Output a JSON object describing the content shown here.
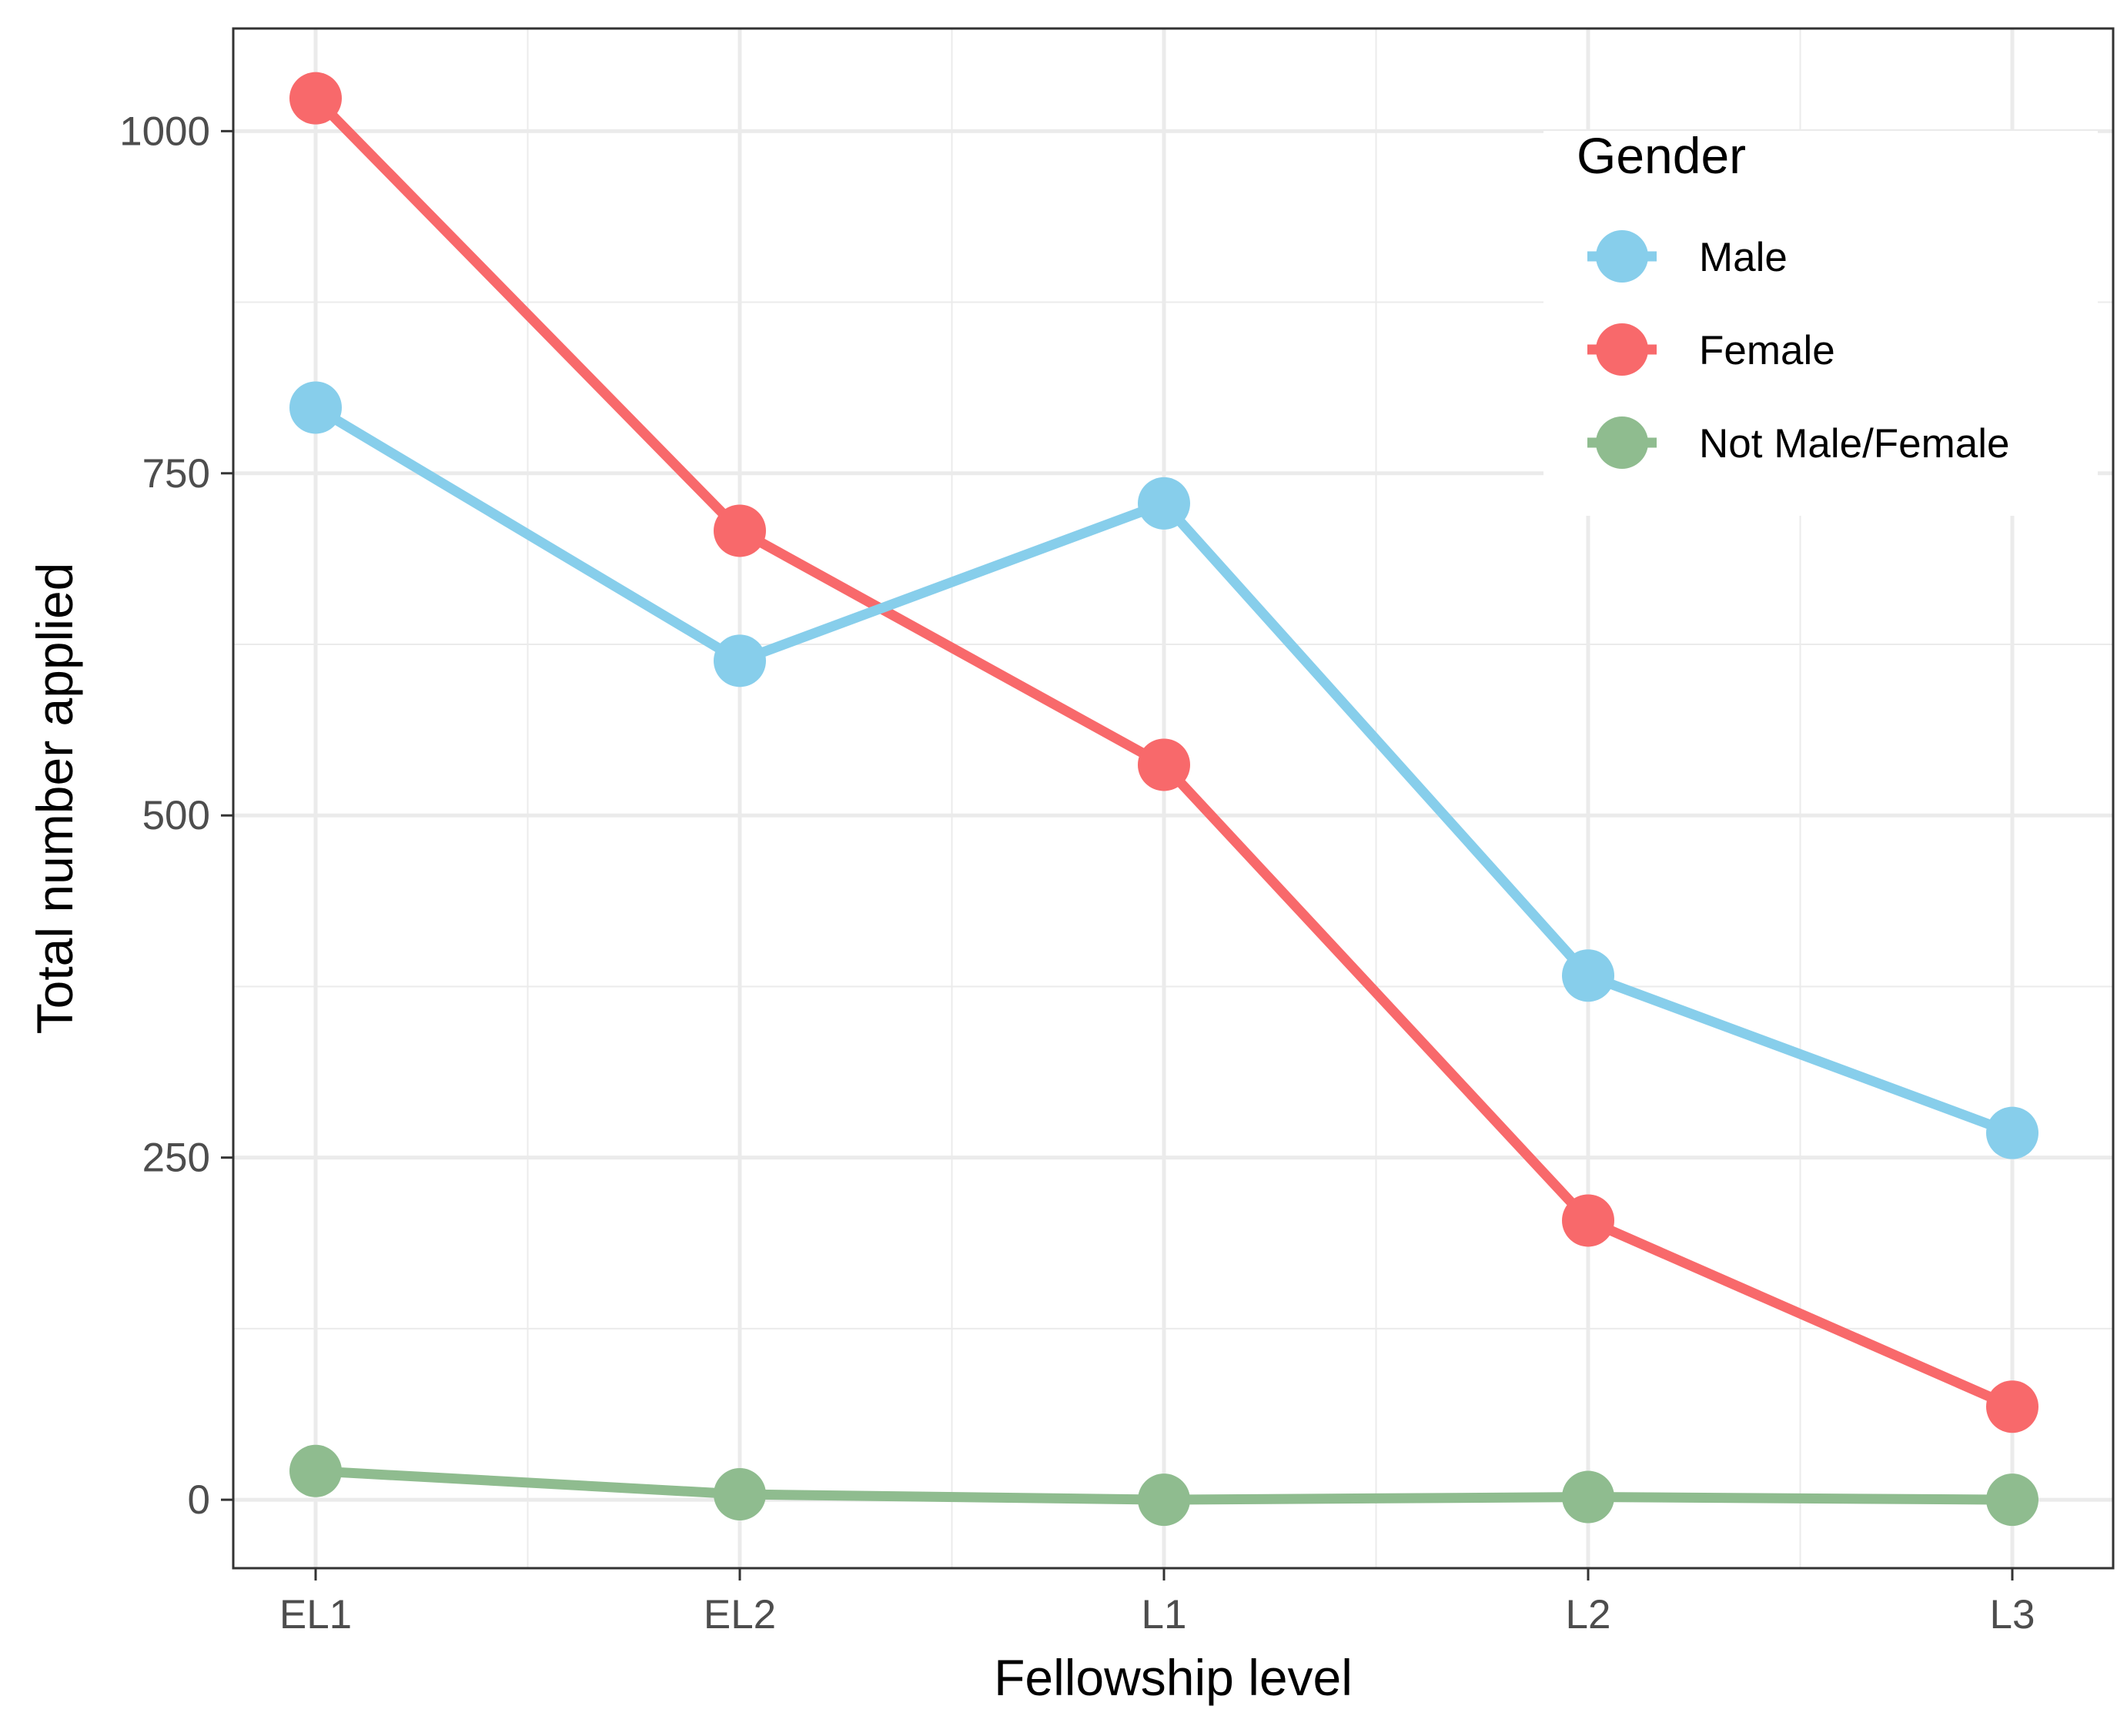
{
  "chart_data": {
    "type": "line",
    "title": "",
    "xlabel": "Fellowship level",
    "ylabel": "Total number applied",
    "categories": [
      "EL1",
      "EL2",
      "L1",
      "L2",
      "L3"
    ],
    "ylim": [
      -50,
      1075
    ],
    "yticks": [
      0,
      250,
      500,
      750,
      1000
    ],
    "yticks_minor": [
      125,
      375,
      625,
      875
    ],
    "grid": true,
    "legend": {
      "title": "Gender",
      "placement": "top-right"
    },
    "series": [
      {
        "name": "Male",
        "color": "#87CEEB",
        "values": [
          798,
          613,
          728,
          383,
          268
        ]
      },
      {
        "name": "Female",
        "color": "#F8696B",
        "values": [
          1024,
          708,
          537,
          204,
          68
        ]
      },
      {
        "name": "Not Male/Female",
        "color": "#8FBC8F",
        "values": [
          21,
          4,
          0,
          2,
          0
        ]
      }
    ]
  }
}
